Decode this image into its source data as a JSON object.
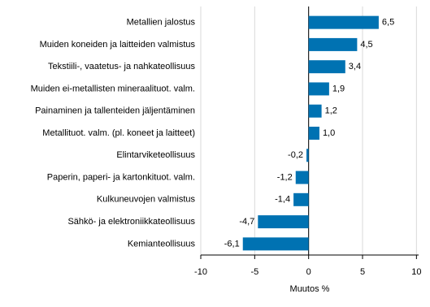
{
  "chart_data": {
    "type": "bar",
    "horizontal": true,
    "color": "#0072b2",
    "categories": [
      "Metallien jalostus",
      "Muiden koneiden ja laitteiden valmistus",
      "Tekstiili-, vaatetus- ja nahkateollisuus",
      "Muiden ei-metallisten mineraalituot. valm.",
      "Painaminen ja tallenteiden jäljentäminen",
      "Metallituot. valm. (pl. koneet ja laitteet)",
      "Elintarviketeollisuus",
      "Paperin, paperi- ja kartonkituot. valm.",
      "Kulkuneuvojen valmistus",
      "Sähkö- ja elektroniikkateollisuus",
      "Kemianteollisuus"
    ],
    "values": [
      6.5,
      4.5,
      3.4,
      1.9,
      1.2,
      1.0,
      -0.2,
      -1.2,
      -1.4,
      -4.7,
      -6.1
    ],
    "value_labels": [
      "6,5",
      "4,5",
      "3,4",
      "1,9",
      "1,2",
      "1,0",
      "-0,2",
      "-1,2",
      "-1,4",
      "-4,7",
      "-6,1"
    ],
    "xlim": [
      -10,
      10.2
    ],
    "xticks": [
      -10,
      -5,
      0,
      5,
      10
    ],
    "xlabel": "Muutos %",
    "grid": true
  }
}
